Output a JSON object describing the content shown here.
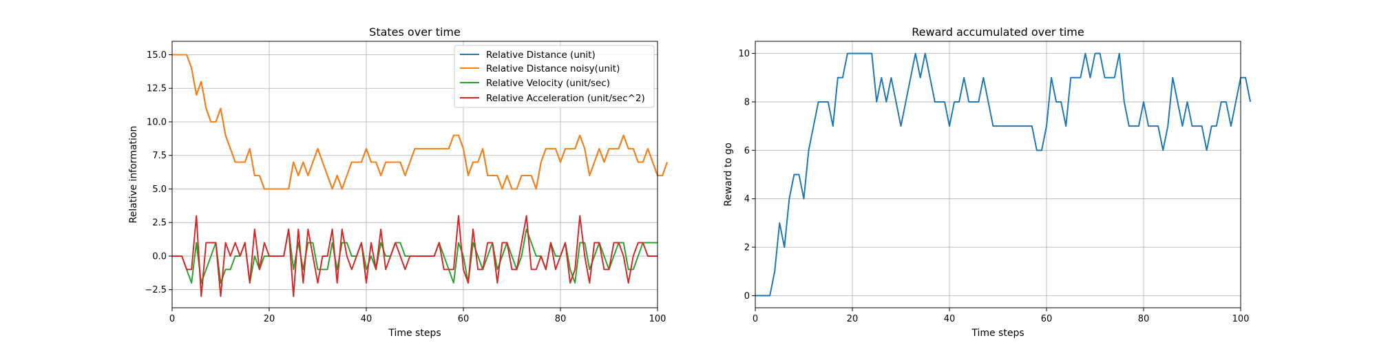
{
  "chart_data": [
    {
      "type": "line",
      "title": "States over time",
      "xlabel": "Time steps",
      "ylabel": "Relative information",
      "xlim": [
        0,
        100
      ],
      "ylim": [
        -3.85,
        16
      ],
      "xticks": [
        0,
        20,
        40,
        60,
        80,
        100
      ],
      "yticks": [
        -2.5,
        0.0,
        2.5,
        5.0,
        7.5,
        10.0,
        12.5,
        15.0
      ],
      "xtick_labels": [
        "0",
        "20",
        "40",
        "60",
        "80",
        "100"
      ],
      "ytick_labels": [
        "−2.5",
        "0.0",
        "2.5",
        "5.0",
        "7.5",
        "10.0",
        "12.5",
        "15.0"
      ],
      "grid": true,
      "legend": "top-right",
      "series": [
        {
          "name": "Relative Distance (unit)",
          "color": "#1f77b4",
          "values": [
            15,
            15,
            15,
            15,
            14,
            12,
            13,
            11,
            10,
            10,
            11,
            9,
            8,
            7,
            7,
            7,
            8,
            6,
            6,
            5,
            5,
            5,
            5,
            5,
            5,
            7,
            6,
            7,
            6,
            7,
            8,
            7,
            6,
            5,
            6,
            5,
            6,
            7,
            7,
            7,
            8,
            7,
            7,
            6,
            7,
            7,
            7,
            7,
            6,
            7,
            8,
            8,
            8,
            8,
            8,
            8,
            8,
            8,
            9,
            9,
            8,
            6,
            7,
            7,
            8,
            6,
            6,
            6,
            5,
            6,
            5,
            5,
            6,
            6,
            6,
            5,
            7,
            8,
            8,
            8,
            7,
            8,
            8,
            8,
            9,
            8,
            6,
            7,
            8,
            7,
            8,
            8,
            8,
            9,
            8,
            8,
            7,
            7,
            8,
            7,
            6,
            6,
            7
          ]
        },
        {
          "name": "Relative Distance noisy(unit)",
          "color": "#ff7f0e",
          "values": [
            15,
            15,
            15,
            15,
            14,
            12,
            13,
            11,
            10,
            10,
            11,
            9,
            8,
            7,
            7,
            7,
            8,
            6,
            6,
            5,
            5,
            5,
            5,
            5,
            5,
            7,
            6,
            7,
            6,
            7,
            8,
            7,
            6,
            5,
            6,
            5,
            6,
            7,
            7,
            7,
            8,
            7,
            7,
            6,
            7,
            7,
            7,
            7,
            6,
            7,
            8,
            8,
            8,
            8,
            8,
            8,
            8,
            8,
            9,
            9,
            8,
            6,
            7,
            7,
            8,
            6,
            6,
            6,
            5,
            6,
            5,
            5,
            6,
            6,
            6,
            5,
            7,
            8,
            8,
            8,
            7,
            8,
            8,
            8,
            9,
            8,
            6,
            7,
            8,
            7,
            8,
            8,
            8,
            9,
            8,
            8,
            7,
            7,
            8,
            7,
            6,
            6,
            7
          ]
        },
        {
          "name": "Relative Velocity (unit/sec)",
          "color": "#2ca02c",
          "values": [
            0,
            0,
            0,
            -1,
            -2,
            1,
            -2,
            -1,
            0,
            1,
            -2,
            -1,
            -1,
            0,
            0,
            1,
            -2,
            0,
            -1,
            0,
            0,
            0,
            0,
            0,
            2,
            -1,
            1,
            -1,
            1,
            1,
            -1,
            -1,
            -1,
            1,
            -1,
            1,
            1,
            0,
            0,
            1,
            -1,
            0,
            -1,
            1,
            0,
            0,
            1,
            1,
            0,
            0,
            0,
            0,
            0,
            0,
            0,
            1,
            0,
            -1,
            -2,
            1,
            0,
            -2,
            1,
            0,
            -1,
            0,
            1,
            -1,
            0,
            1,
            0,
            -1,
            0,
            2,
            1,
            0,
            0,
            -1,
            1,
            0,
            0,
            1,
            -1,
            -2,
            1,
            1,
            -1,
            0,
            1,
            0,
            -1,
            0,
            1,
            1,
            -1,
            -1,
            0,
            1,
            1,
            1,
            1
          ]
        },
        {
          "name": "Relative Acceleration (unit/sec^2)",
          "color": "#d62728",
          "values": [
            0,
            0,
            0,
            -1,
            -1,
            3,
            -3,
            1,
            1,
            1,
            -3,
            1,
            0,
            1,
            0,
            1,
            -2,
            2,
            -1,
            1,
            0,
            0,
            0,
            0,
            2,
            -3,
            2,
            -2,
            2,
            0,
            -2,
            0,
            0,
            2,
            -2,
            2,
            0,
            -1,
            0,
            1,
            -2,
            1,
            -1,
            2,
            -1,
            0,
            1,
            0,
            -1,
            0,
            0,
            0,
            0,
            0,
            0,
            1,
            -1,
            -1,
            -1,
            3,
            -1,
            -2,
            2,
            -1,
            -1,
            1,
            1,
            -2,
            1,
            1,
            -1,
            -1,
            1,
            3,
            -1,
            -1,
            0,
            -1,
            1,
            -1,
            0,
            1,
            -2,
            -1,
            3,
            0,
            -2,
            1,
            1,
            -1,
            -1,
            1,
            1,
            0,
            -2,
            0,
            1,
            1,
            0,
            0,
            0
          ]
        }
      ]
    },
    {
      "type": "line",
      "title": "Reward accumulated over time",
      "xlabel": "Time steps",
      "ylabel": "Reward to go",
      "xlim": [
        0,
        100
      ],
      "ylim": [
        -0.5,
        10.5
      ],
      "xticks": [
        0,
        20,
        40,
        60,
        80,
        100
      ],
      "yticks": [
        0,
        2,
        4,
        6,
        8,
        10
      ],
      "xtick_labels": [
        "0",
        "20",
        "40",
        "60",
        "80",
        "100"
      ],
      "ytick_labels": [
        "0",
        "2",
        "4",
        "6",
        "8",
        "10"
      ],
      "grid": true,
      "series": [
        {
          "color": "#1f77b4",
          "values": [
            0,
            0,
            0,
            0,
            1,
            3,
            2,
            4,
            5,
            5,
            4,
            6,
            7,
            8,
            8,
            8,
            7,
            9,
            9,
            10,
            10,
            10,
            10,
            10,
            10,
            8,
            9,
            8,
            9,
            8,
            7,
            8,
            9,
            10,
            9,
            10,
            9,
            8,
            8,
            8,
            7,
            8,
            8,
            9,
            8,
            8,
            8,
            9,
            8,
            7,
            7,
            7,
            7,
            7,
            7,
            7,
            7,
            7,
            6,
            6,
            7,
            9,
            8,
            8,
            7,
            9,
            9,
            9,
            10,
            9,
            10,
            10,
            9,
            9,
            9,
            10,
            8,
            7,
            7,
            7,
            8,
            7,
            7,
            7,
            6,
            7,
            9,
            8,
            7,
            8,
            7,
            7,
            7,
            6,
            7,
            7,
            8,
            8,
            7,
            8,
            9,
            9,
            8
          ]
        }
      ]
    }
  ]
}
